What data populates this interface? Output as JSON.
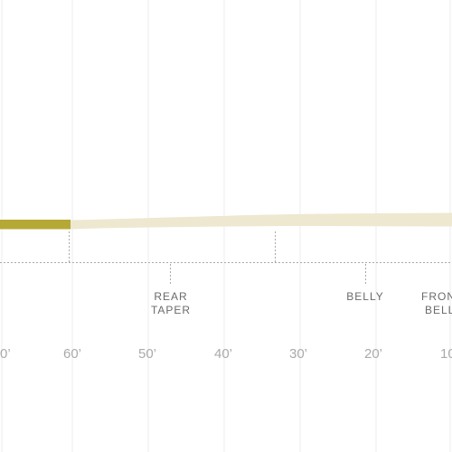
{
  "labels": {
    "rear_taper": [
      "REAR",
      "TAPER"
    ],
    "belly": [
      "BELLY"
    ],
    "front_belly": [
      "FRON",
      "BELL"
    ]
  },
  "scale": [
    "0’",
    "60’",
    "50’",
    "40’",
    "30’",
    "20’",
    "10"
  ],
  "colors": {
    "tip": "#b5a835",
    "line": "#ede8cf",
    "gridline": "#eeeeee",
    "dashed": "#aaaaaa",
    "label_text": "#6a6a6a",
    "scale_text": "#aaaaaa"
  }
}
